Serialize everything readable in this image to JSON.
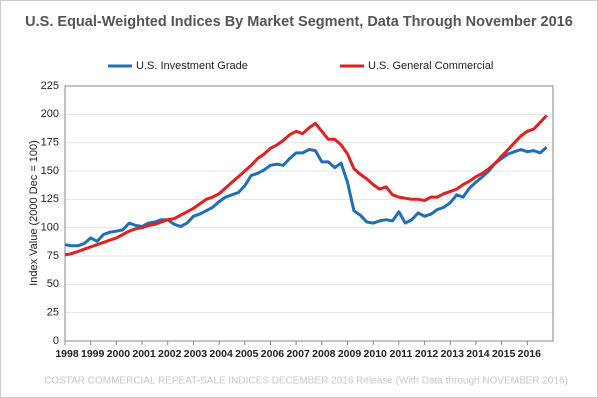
{
  "chart_data": {
    "type": "line",
    "title": "U.S. Equal-Weighted Indices By Market Segment, Data Through November 2016",
    "y_label": "Index Value (2000 Dec = 100)",
    "footer": "COSTAR COMMERCIAL REPEAT-SALE INDICES DECEMBER 2016 Release (With Data through NOVEMBER 2016)",
    "x": [
      1998,
      1998.25,
      1998.5,
      1998.75,
      1999,
      1999.25,
      1999.5,
      1999.75,
      2000,
      2000.25,
      2000.5,
      2000.75,
      2001,
      2001.25,
      2001.5,
      2001.75,
      2002,
      2002.25,
      2002.5,
      2002.75,
      2003,
      2003.25,
      2003.5,
      2003.75,
      2004,
      2004.25,
      2004.5,
      2004.75,
      2005,
      2005.25,
      2005.5,
      2005.75,
      2006,
      2006.25,
      2006.5,
      2006.75,
      2007,
      2007.25,
      2007.5,
      2007.75,
      2008,
      2008.25,
      2008.5,
      2008.75,
      2009,
      2009.25,
      2009.5,
      2009.75,
      2010,
      2010.25,
      2010.5,
      2010.75,
      2011,
      2011.25,
      2011.5,
      2011.75,
      2012,
      2012.25,
      2012.5,
      2012.75,
      2013,
      2013.25,
      2013.5,
      2013.75,
      2014,
      2014.25,
      2014.5,
      2014.75,
      2015,
      2015.25,
      2015.5,
      2015.75,
      2016,
      2016.25,
      2016.5,
      2016.75
    ],
    "series": [
      {
        "name": "U.S. Investment Grade",
        "color": "#1f6fb8",
        "values": [
          85,
          84,
          84,
          86,
          91,
          88,
          94,
          96,
          97,
          98,
          104,
          102,
          101,
          104,
          105,
          107,
          107,
          103,
          101,
          104,
          110,
          112,
          115,
          118,
          123,
          127,
          129,
          131,
          137,
          146,
          148,
          151,
          155,
          156,
          155,
          161,
          166,
          166,
          169,
          168,
          158,
          158,
          153,
          157,
          140,
          115,
          111,
          105,
          104,
          106,
          107,
          106,
          114,
          104,
          107,
          113,
          110,
          112,
          116,
          118,
          122,
          129,
          127,
          135,
          140,
          145,
          150,
          157,
          161,
          165,
          167,
          169,
          167,
          168,
          166,
          171
        ]
      },
      {
        "name": "U.S. General Commercial",
        "color": "#e41f1f",
        "values": [
          76,
          77,
          79,
          81,
          83,
          85,
          87,
          89,
          91,
          94,
          97,
          99,
          100,
          102,
          103,
          105,
          107,
          108,
          111,
          114,
          117,
          121,
          125,
          127,
          130,
          135,
          140,
          145,
          150,
          155,
          161,
          165,
          170,
          173,
          177,
          182,
          185,
          183,
          188,
          192,
          185,
          178,
          178,
          173,
          165,
          152,
          147,
          143,
          138,
          134,
          136,
          129,
          127,
          126,
          125,
          125,
          124,
          127,
          127,
          130,
          132,
          134,
          138,
          141,
          145,
          148,
          152,
          157,
          163,
          169,
          175,
          181,
          185,
          187,
          193,
          199
        ]
      }
    ],
    "xlim": [
      1998,
      2017
    ],
    "xticks": [
      1998,
      1999,
      2000,
      2001,
      2002,
      2003,
      2004,
      2005,
      2006,
      2007,
      2008,
      2009,
      2010,
      2011,
      2012,
      2013,
      2014,
      2015,
      2016
    ],
    "ylim": [
      0,
      225
    ],
    "yticks": [
      0,
      25,
      50,
      75,
      100,
      125,
      150,
      175,
      200,
      225
    ],
    "grid": true
  }
}
